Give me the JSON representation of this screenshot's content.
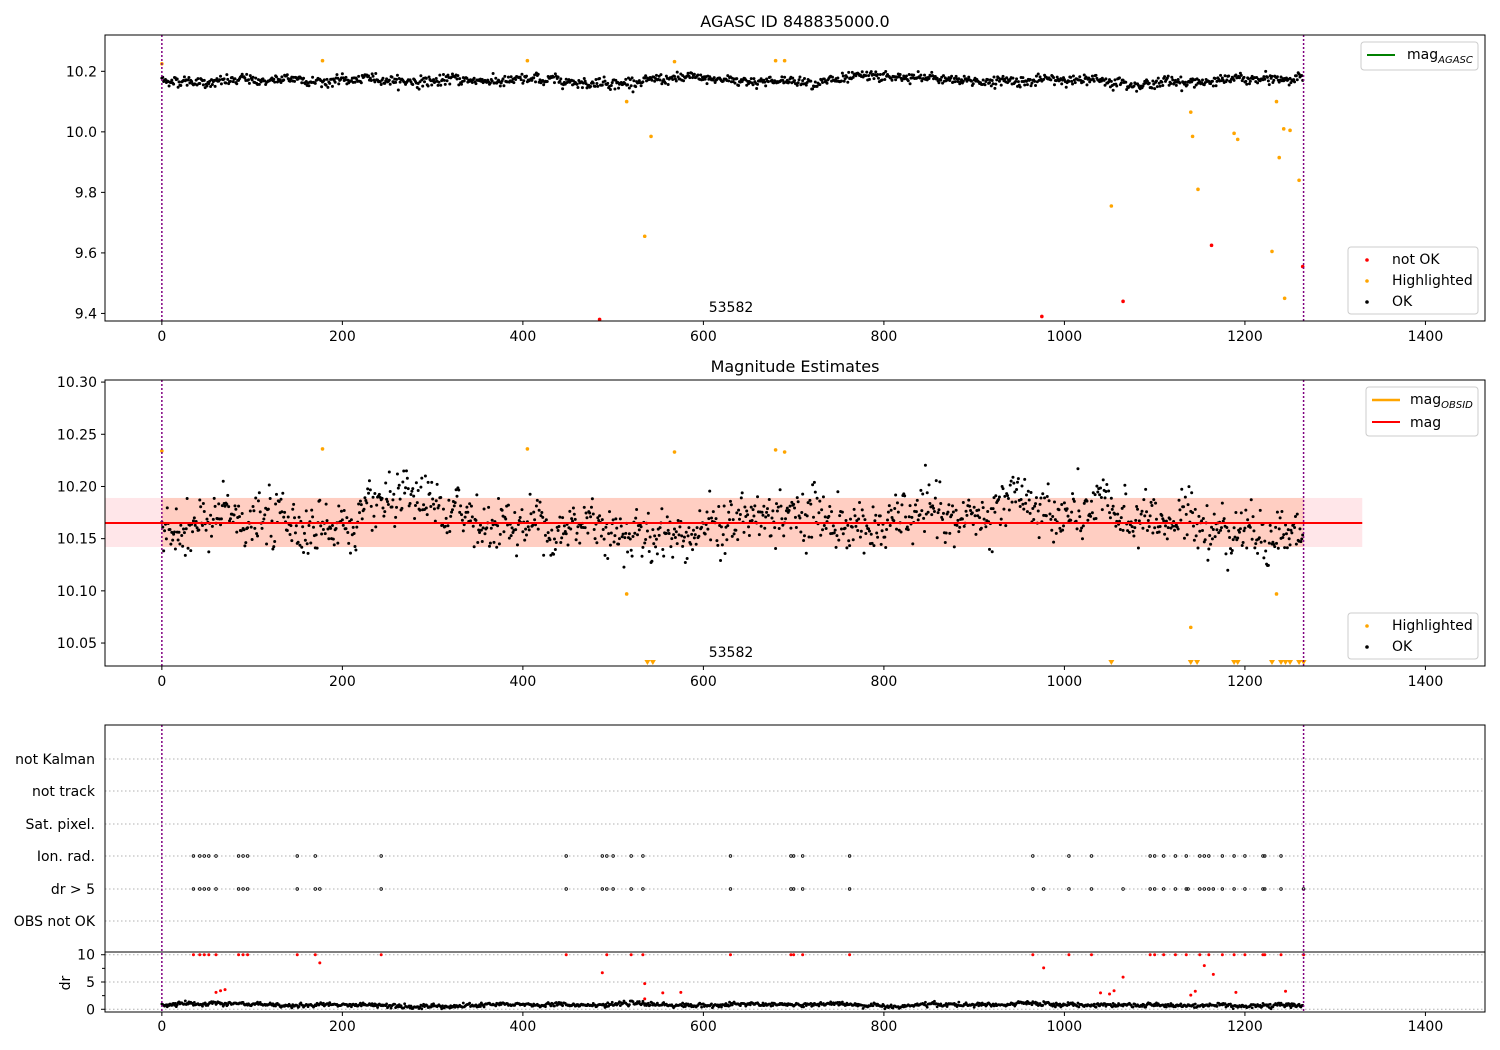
{
  "colors": {
    "ok": "#000000",
    "highlighted": "#ffa500",
    "not_ok": "#ff0000",
    "mag_line": "#ff0000",
    "mag_obsid": "#ffa500",
    "mag_agasc": "#008000",
    "band_outer": "#ffb6c1",
    "band_inner": "#ffa07a",
    "boundary": "#800080"
  },
  "chart_data": [
    {
      "type": "scatter",
      "title": "AGASC ID 848835000.0",
      "xlabel": "",
      "ylabel": "",
      "xlim": [
        -63,
        1466
      ],
      "ylim": [
        9.375,
        10.32
      ],
      "xticks": [
        0,
        200,
        400,
        600,
        800,
        1000,
        1200,
        1400
      ],
      "xtick_labels": [
        "0",
        "200",
        "400",
        "600",
        "800",
        "1000",
        "1200",
        "1400"
      ],
      "yticks": [
        9.4,
        9.6,
        9.8,
        10.0,
        10.2
      ],
      "ytick_labels": [
        "9.4",
        "9.6",
        "9.8",
        "10.0",
        "10.2"
      ],
      "boundaries": [
        0,
        1265
      ],
      "annotation": {
        "text": "53582",
        "x": 630,
        "y": 9.415
      },
      "legend_upper": {
        "position": "top-right",
        "entries": [
          {
            "label": "mag",
            "sub": "AGASC"
          }
        ]
      },
      "legend_lower": {
        "position": "bottom-right",
        "entries": [
          "not OK",
          "Highlighted",
          "OK"
        ]
      },
      "ok_series": {
        "name": "OK",
        "n": 1265,
        "mean": 10.17,
        "noise": 0.015
      },
      "highlighted": [
        [
          0,
          10.225
        ],
        [
          178,
          10.235
        ],
        [
          405,
          10.235
        ],
        [
          568,
          10.232
        ],
        [
          680,
          10.235
        ],
        [
          690,
          10.235
        ],
        [
          515,
          10.1
        ],
        [
          535,
          9.655
        ],
        [
          542,
          9.985
        ],
        [
          1052,
          9.755
        ],
        [
          1140,
          10.065
        ],
        [
          1142,
          9.985
        ],
        [
          1148,
          9.81
        ],
        [
          1188,
          9.995
        ],
        [
          1192,
          9.975
        ],
        [
          1230,
          9.605
        ],
        [
          1235,
          10.1
        ],
        [
          1238,
          9.915
        ],
        [
          1243,
          10.01
        ],
        [
          1244,
          9.45
        ],
        [
          1250,
          10.005
        ],
        [
          1260,
          9.84
        ]
      ],
      "not_ok": [
        [
          485,
          9.38
        ],
        [
          975,
          9.39
        ],
        [
          1065,
          9.44
        ],
        [
          1163,
          9.625
        ],
        [
          1264,
          9.555
        ]
      ]
    },
    {
      "type": "scatter",
      "title": "Magnitude Estimates",
      "xlabel": "",
      "ylabel": "",
      "xlim": [
        -63,
        1466
      ],
      "ylim": [
        10.028,
        10.302
      ],
      "xticks": [
        0,
        200,
        400,
        600,
        800,
        1000,
        1200,
        1400
      ],
      "xtick_labels": [
        "0",
        "200",
        "400",
        "600",
        "800",
        "1000",
        "1200",
        "1400"
      ],
      "yticks": [
        10.05,
        10.1,
        10.15,
        10.2,
        10.25,
        10.3
      ],
      "ytick_labels": [
        "10.05",
        "10.10",
        "10.15",
        "10.20",
        "10.25",
        "10.30"
      ],
      "boundaries": [
        0,
        1265
      ],
      "annotation": {
        "text": "53582",
        "x": 630,
        "y": 10.038
      },
      "mag": 10.165,
      "band_outer": [
        10.142,
        10.189
      ],
      "band_inner": [
        10.142,
        10.189
      ],
      "band_x_range": [
        -63,
        1330
      ],
      "legend_upper": {
        "position": "top-right",
        "entries": [
          {
            "label": "mag",
            "sub": "OBSID"
          },
          {
            "label": "mag",
            "sub": ""
          }
        ]
      },
      "legend_lower": {
        "position": "bottom-right",
        "entries": [
          "Highlighted",
          "OK"
        ]
      },
      "ok_series": {
        "name": "OK",
        "n": 1265,
        "mean": 10.165,
        "noise": 0.022
      },
      "highlighted": [
        [
          0,
          10.234
        ],
        [
          178,
          10.236
        ],
        [
          405,
          10.236
        ],
        [
          568,
          10.233
        ],
        [
          680,
          10.235
        ],
        [
          690,
          10.233
        ],
        [
          515,
          10.097
        ],
        [
          1140,
          10.065
        ],
        [
          1235,
          10.097
        ]
      ],
      "below_range_markers": [
        538,
        544,
        1052,
        1140,
        1147,
        1188,
        1192,
        1230,
        1240,
        1245,
        1250,
        1260,
        1265
      ]
    },
    {
      "type": "scatter",
      "title": "",
      "xlabel": "",
      "ylabel": "dr",
      "xlim": [
        -63,
        1466
      ],
      "ylim": [
        -0.5,
        10.5
      ],
      "xticks": [
        0,
        200,
        400,
        600,
        800,
        1000,
        1200,
        1400
      ],
      "xtick_labels": [
        "0",
        "200",
        "400",
        "600",
        "800",
        "1000",
        "1200",
        "1400"
      ],
      "yticks": [
        0,
        5,
        10
      ],
      "ytick_labels": [
        "0",
        "5",
        "10"
      ],
      "boundaries": [
        0,
        1265
      ],
      "flag_rows": [
        "not Kalman",
        "not track",
        "Sat. pixel.",
        "Ion. rad.",
        "dr > 5",
        "OBS not OK"
      ],
      "ion_rad_x": [
        35,
        42,
        47,
        52,
        60,
        85,
        90,
        95,
        150,
        170,
        243,
        448,
        488,
        493,
        500,
        520,
        533,
        630,
        697,
        700,
        710,
        762,
        965,
        1005,
        1030,
        1095,
        1100,
        1110,
        1123,
        1135,
        1150,
        1155,
        1160,
        1175,
        1188,
        1200,
        1220,
        1222,
        1240
      ],
      "dr_gt5_x": [
        35,
        42,
        47,
        52,
        60,
        85,
        90,
        95,
        150,
        170,
        175,
        243,
        448,
        488,
        493,
        500,
        520,
        533,
        630,
        697,
        700,
        710,
        762,
        965,
        977,
        1005,
        1030,
        1065,
        1095,
        1100,
        1110,
        1123,
        1135,
        1137,
        1150,
        1155,
        1160,
        1165,
        1175,
        1188,
        1200,
        1220,
        1222,
        1240,
        1265
      ],
      "dr_ok_mean": 0.8,
      "dr_red_points": [
        [
          35,
          10
        ],
        [
          42,
          10
        ],
        [
          47,
          10
        ],
        [
          52,
          10
        ],
        [
          60,
          10
        ],
        [
          85,
          10
        ],
        [
          90,
          10
        ],
        [
          95,
          10
        ],
        [
          150,
          10
        ],
        [
          170,
          10
        ],
        [
          175,
          8.5
        ],
        [
          243,
          10
        ],
        [
          448,
          10
        ],
        [
          488,
          6.7
        ],
        [
          493,
          10
        ],
        [
          520,
          10
        ],
        [
          533,
          10
        ],
        [
          535,
          4.7
        ],
        [
          630,
          10
        ],
        [
          697,
          10
        ],
        [
          700,
          10
        ],
        [
          710,
          10
        ],
        [
          762,
          10
        ],
        [
          965,
          10
        ],
        [
          977,
          7.6
        ],
        [
          1005,
          10
        ],
        [
          1030,
          10
        ],
        [
          1040,
          3.0
        ],
        [
          1050,
          2.8
        ],
        [
          1055,
          3.4
        ],
        [
          1065,
          5.9
        ],
        [
          1095,
          10
        ],
        [
          1100,
          10
        ],
        [
          1110,
          10
        ],
        [
          1123,
          10
        ],
        [
          1135,
          10
        ],
        [
          1140,
          2.6
        ],
        [
          1145,
          3.3
        ],
        [
          1150,
          10
        ],
        [
          1155,
          8.0
        ],
        [
          1160,
          10
        ],
        [
          1165,
          6.4
        ],
        [
          1175,
          10
        ],
        [
          1188,
          10
        ],
        [
          1190,
          3.1
        ],
        [
          1200,
          10
        ],
        [
          1220,
          10
        ],
        [
          1222,
          10
        ],
        [
          1240,
          10
        ],
        [
          1245,
          3.3
        ],
        [
          1265,
          10
        ],
        [
          60,
          3.1
        ],
        [
          65,
          3.4
        ],
        [
          70,
          3.6
        ],
        [
          535,
          1.9
        ],
        [
          555,
          3.0
        ],
        [
          575,
          3.1
        ]
      ]
    }
  ]
}
